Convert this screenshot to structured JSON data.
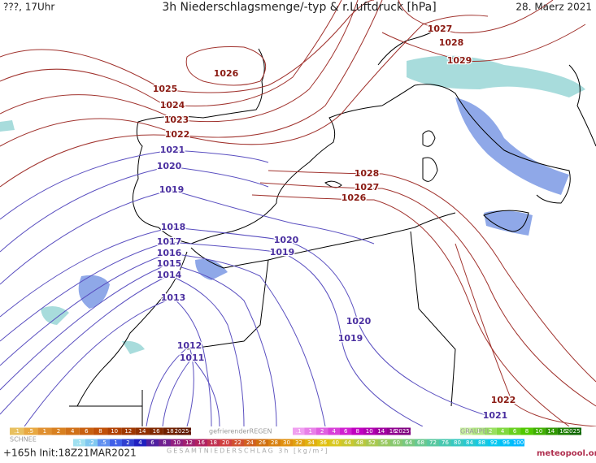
{
  "header": {
    "left": "???, 17Uhr",
    "title": "3h Niederschlagsmenge/-typ & r.Luftdruck [hPa]",
    "date": "28. Maerz 2021"
  },
  "isobar_labels": [
    1026,
    1025,
    1024,
    1023,
    1022,
    1021,
    1020,
    1019,
    1018,
    1017,
    1016,
    1015,
    1014,
    1013,
    1012,
    1011,
    1027,
    1028,
    1029,
    1028,
    1027,
    1026,
    1020,
    1019,
    1020,
    1019,
    1022,
    1021
  ],
  "legend": {
    "snow_title": "SCHNEE",
    "snow_scale": [
      ".1",
      ".5",
      "1",
      "2",
      "4",
      "6",
      "8",
      "10",
      "12",
      "14",
      "16",
      "18",
      "2025+"
    ],
    "freezing_rain_title": "gefrierenderREGEN",
    "freezing_rain_scale": [
      ".1",
      "1",
      "2",
      "4",
      "6",
      "8",
      "10",
      "14",
      "16",
      "2025+"
    ],
    "graupel_title": "GRAUPEL",
    "graupel_scale": [
      ".1",
      "1",
      "2",
      "4",
      "6",
      "8",
      "10",
      "14",
      "16",
      "2025+"
    ],
    "total_scale": [
      ".1",
      ".2",
      ".5",
      "1",
      "2",
      "4",
      "6",
      "8",
      "10",
      "12",
      "16",
      "18",
      "20",
      "22",
      "24",
      "26",
      "28",
      "30",
      "32",
      "34",
      "36",
      "40",
      "44",
      "48",
      "52",
      "56",
      "60",
      "64",
      "68",
      "72",
      "76",
      "80",
      "84",
      "88",
      "92",
      "96",
      "100"
    ],
    "total_title": "GESAMTNIEDERSCHLAG 3h [kg/m²]"
  },
  "footer": {
    "init": "+165h Init:18Z21MAR2021",
    "brand": "meteopool.org"
  }
}
